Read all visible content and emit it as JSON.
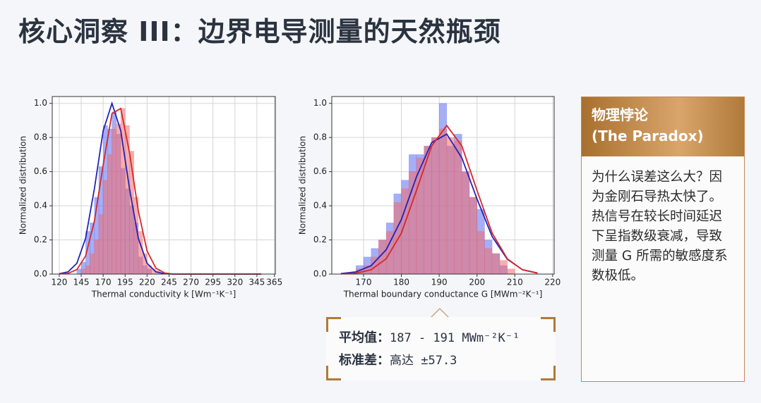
{
  "title": "核心洞察 III：边界电导测量的天然瓶颈",
  "side_panel": {
    "heading": "物理悖论",
    "subheading": "(The Paradox)",
    "body": "为什么误差这么大？因为金刚石导热太快了。热信号在较长时间延迟下呈指数级衰减，导致测量 G 所需的敏感度系数极低。"
  },
  "stats": {
    "mean_label": "平均值：",
    "mean_value": "187 - 191 MWm⁻²K⁻¹",
    "std_label": "标准差：",
    "std_value": "高达 ±57.3"
  },
  "chart_data": [
    {
      "type": "histogram",
      "x_label": "Thermal conductivity k [Wm⁻¹K⁻¹]",
      "y_label": "Normalized distribution",
      "xlim": [
        112,
        366
      ],
      "ylim": [
        0,
        1.04
      ],
      "xticks": [
        120,
        145,
        170,
        195,
        220,
        245,
        270,
        295,
        320,
        345,
        365
      ],
      "yticks": [
        {
          "value": 0,
          "label": "0.0"
        },
        0.2,
        0.4,
        0.6,
        0.8,
        {
          "value": 1,
          "label": "1.0"
        }
      ],
      "grid": true,
      "bins": [
        140,
        145,
        150,
        155,
        160,
        165,
        170,
        175,
        180,
        185,
        190,
        195,
        200,
        205,
        210,
        215,
        220,
        225,
        230,
        235
      ],
      "series": [
        {
          "color": "#5b6cf0",
          "values": [
            0.03,
            0.07,
            0.25,
            0.3,
            0.45,
            0.63,
            0.87,
            0.85,
            0.95,
            0.82,
            0.62,
            0.5,
            0.4,
            0.3,
            0.1,
            0.05,
            0.03,
            0,
            0
          ]
        },
        {
          "color": "#f26b6b",
          "values": [
            0,
            0.03,
            0.05,
            0.12,
            0.2,
            0.35,
            0.55,
            0.7,
            0.85,
            0.88,
            0.97,
            0.87,
            0.72,
            0.45,
            0.25,
            0.12,
            0.05,
            0.03,
            0.02
          ]
        }
      ],
      "curve_x": [
        120,
        130,
        140,
        150,
        160,
        170,
        180,
        190,
        200,
        210,
        220,
        230,
        240,
        250,
        260,
        270,
        280,
        290,
        300,
        310,
        320,
        330,
        340,
        350
      ],
      "curves": [
        {
          "color": "#2323b8",
          "values": [
            0.002,
            0.013,
            0.063,
            0.21,
            0.5,
            0.84,
            1.0,
            0.84,
            0.5,
            0.21,
            0.063,
            0.013,
            0.002,
            0,
            0,
            0,
            0,
            0,
            0,
            0,
            0,
            0,
            0,
            0
          ]
        },
        {
          "color": "#d62728",
          "values": [
            0.001,
            0.004,
            0.026,
            0.106,
            0.31,
            0.64,
            0.94,
            0.97,
            0.71,
            0.37,
            0.135,
            0.035,
            0.006,
            0,
            0,
            0,
            0,
            0,
            0,
            0,
            0,
            0,
            0,
            0
          ]
        }
      ]
    },
    {
      "type": "histogram",
      "x_label": "Thermal boundary conductance G [MWm⁻²K⁻¹]",
      "y_label": "Normalized distribution",
      "xlim": [
        161.6,
        220.4
      ],
      "ylim": [
        0,
        1.04
      ],
      "xticks": [
        170,
        180,
        190,
        200,
        210,
        220
      ],
      "yticks": [
        {
          "value": 0,
          "label": "0.0"
        },
        0.2,
        0.4,
        0.6,
        0.8,
        {
          "value": 1,
          "label": "1.0"
        }
      ],
      "grid": true,
      "bins": [
        168,
        170,
        172,
        174,
        176,
        178,
        180,
        182,
        184,
        186,
        188,
        190,
        192,
        194,
        196,
        198,
        200,
        202,
        204,
        206,
        208,
        210
      ],
      "series": [
        {
          "color": "#5b6cf0",
          "values": [
            0.05,
            0.1,
            0.15,
            0.2,
            0.3,
            0.47,
            0.55,
            0.7,
            0.7,
            0.75,
            0.8,
            1.0,
            0.75,
            0.82,
            0.6,
            0.45,
            0.38,
            0.2,
            0.12,
            0.05,
            0
          ]
        },
        {
          "color": "#f26b6b",
          "values": [
            0.03,
            0.05,
            0.1,
            0.2,
            0.25,
            0.42,
            0.5,
            0.6,
            0.68,
            0.75,
            0.8,
            0.85,
            0.8,
            0.78,
            0.6,
            0.45,
            0.25,
            0.15,
            0.12,
            0.08,
            0.03
          ]
        }
      ],
      "curve_x": [
        164,
        168,
        172,
        176,
        180,
        184,
        188,
        192,
        196,
        200,
        204,
        208,
        212,
        216
      ],
      "curves": [
        {
          "color": "#2323b8",
          "values": [
            0.003,
            0.013,
            0.049,
            0.143,
            0.32,
            0.57,
            0.77,
            0.82,
            0.68,
            0.44,
            0.22,
            0.087,
            0.026,
            0.006
          ]
        },
        {
          "color": "#d62728",
          "values": [
            0.001,
            0.005,
            0.025,
            0.09,
            0.24,
            0.49,
            0.75,
            0.87,
            0.75,
            0.49,
            0.24,
            0.09,
            0.025,
            0.005
          ]
        }
      ]
    }
  ]
}
